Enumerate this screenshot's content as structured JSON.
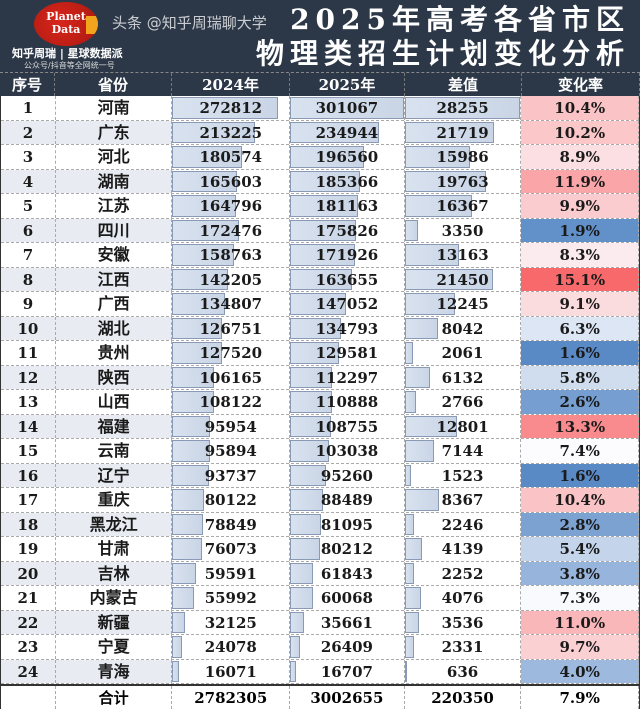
{
  "logo": {
    "line1": "Planet",
    "line2": "Data"
  },
  "brand": "知乎周瑞 | 星球数据派",
  "brand_sub": "公众号/抖音等全网统一号",
  "title_line1": "2025年高考各省市区",
  "title_line2": "物理类招生计划变化分析",
  "columns": [
    "序号",
    "省份",
    "2024年",
    "2025年",
    "差值",
    "变化率"
  ],
  "colors": {
    "header_bg": "#2c3848",
    "bar": "#d3dceb",
    "high": "#f8696b",
    "mid": "#fcfcff",
    "low": "#5a8ac6"
  },
  "rows": [
    {
      "no": "1",
      "prov": "河南",
      "y2024": 272812,
      "y2025": 301067,
      "diff": 28255,
      "rate": "10.4%"
    },
    {
      "no": "2",
      "prov": "广东",
      "y2024": 213225,
      "y2025": 234944,
      "diff": 21719,
      "rate": "10.2%"
    },
    {
      "no": "3",
      "prov": "河北",
      "y2024": 180574,
      "y2025": 196560,
      "diff": 15986,
      "rate": "8.9%"
    },
    {
      "no": "4",
      "prov": "湖南",
      "y2024": 165603,
      "y2025": 185366,
      "diff": 19763,
      "rate": "11.9%"
    },
    {
      "no": "5",
      "prov": "江苏",
      "y2024": 164796,
      "y2025": 181163,
      "diff": 16367,
      "rate": "9.9%"
    },
    {
      "no": "6",
      "prov": "四川",
      "y2024": 172476,
      "y2025": 175826,
      "diff": 3350,
      "rate": "1.9%"
    },
    {
      "no": "7",
      "prov": "安徽",
      "y2024": 158763,
      "y2025": 171926,
      "diff": 13163,
      "rate": "8.3%"
    },
    {
      "no": "8",
      "prov": "江西",
      "y2024": 142205,
      "y2025": 163655,
      "diff": 21450,
      "rate": "15.1%"
    },
    {
      "no": "9",
      "prov": "广西",
      "y2024": 134807,
      "y2025": 147052,
      "diff": 12245,
      "rate": "9.1%"
    },
    {
      "no": "10",
      "prov": "湖北",
      "y2024": 126751,
      "y2025": 134793,
      "diff": 8042,
      "rate": "6.3%"
    },
    {
      "no": "11",
      "prov": "贵州",
      "y2024": 127520,
      "y2025": 129581,
      "diff": 2061,
      "rate": "1.6%"
    },
    {
      "no": "12",
      "prov": "陕西",
      "y2024": 106165,
      "y2025": 112297,
      "diff": 6132,
      "rate": "5.8%"
    },
    {
      "no": "13",
      "prov": "山西",
      "y2024": 108122,
      "y2025": 110888,
      "diff": 2766,
      "rate": "2.6%"
    },
    {
      "no": "14",
      "prov": "福建",
      "y2024": 95954,
      "y2025": 108755,
      "diff": 12801,
      "rate": "13.3%"
    },
    {
      "no": "15",
      "prov": "云南",
      "y2024": 95894,
      "y2025": 103038,
      "diff": 7144,
      "rate": "7.4%"
    },
    {
      "no": "16",
      "prov": "辽宁",
      "y2024": 93737,
      "y2025": 95260,
      "diff": 1523,
      "rate": "1.6%"
    },
    {
      "no": "17",
      "prov": "重庆",
      "y2024": 80122,
      "y2025": 88489,
      "diff": 8367,
      "rate": "10.4%"
    },
    {
      "no": "18",
      "prov": "黑龙江",
      "y2024": 78849,
      "y2025": 81095,
      "diff": 2246,
      "rate": "2.8%"
    },
    {
      "no": "19",
      "prov": "甘肃",
      "y2024": 76073,
      "y2025": 80212,
      "diff": 4139,
      "rate": "5.4%"
    },
    {
      "no": "20",
      "prov": "吉林",
      "y2024": 59591,
      "y2025": 61843,
      "diff": 2252,
      "rate": "3.8%"
    },
    {
      "no": "21",
      "prov": "内蒙古",
      "y2024": 55992,
      "y2025": 60068,
      "diff": 4076,
      "rate": "7.3%"
    },
    {
      "no": "22",
      "prov": "新疆",
      "y2024": 32125,
      "y2025": 35661,
      "diff": 3536,
      "rate": "11.0%"
    },
    {
      "no": "23",
      "prov": "宁夏",
      "y2024": 24078,
      "y2025": 26409,
      "diff": 2331,
      "rate": "9.7%"
    },
    {
      "no": "24",
      "prov": "青海",
      "y2024": 16071,
      "y2025": 16707,
      "diff": 636,
      "rate": "4.0%"
    }
  ],
  "total": {
    "label": "合计",
    "y2024": "2782305",
    "y2025": "3002655",
    "diff": "220350",
    "rate": "7.9%"
  },
  "watermark": "头条 @知乎周瑞聊大学"
}
